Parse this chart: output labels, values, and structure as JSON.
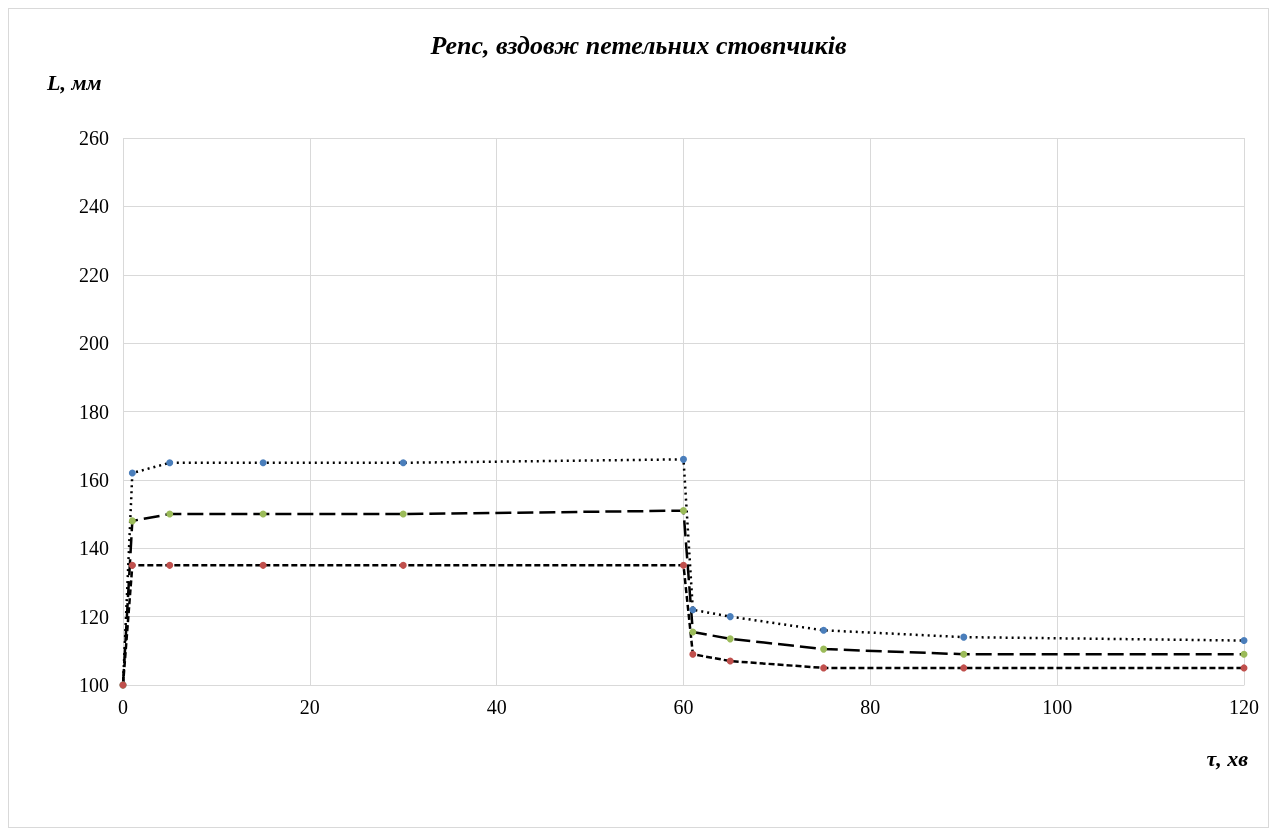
{
  "chart_data": {
    "type": "line",
    "title": "Репс, вздовж петельних стовпчиків",
    "xlabel": "τ, хв",
    "ylabel": "L, мм",
    "x": [
      0,
      1,
      5,
      15,
      30,
      60,
      61,
      65,
      75,
      90,
      120
    ],
    "series": [
      {
        "color": "#4a7ebb",
        "line_style": "dotted",
        "values": [
          100,
          162,
          165,
          165,
          165,
          166,
          122,
          120,
          116,
          114,
          113
        ]
      },
      {
        "color": "#9bbb59",
        "line_style": "dashed",
        "values": [
          100,
          148,
          150,
          150,
          150,
          151,
          115.5,
          113.5,
          110.5,
          109,
          109
        ]
      },
      {
        "color": "#c0504d",
        "line_style": "dashed",
        "values": [
          100,
          135,
          135,
          135,
          135,
          135,
          109,
          107,
          105,
          105,
          105
        ]
      }
    ],
    "xlim": [
      0,
      120
    ],
    "xticks": [
      0,
      20,
      40,
      60,
      80,
      100,
      120
    ],
    "ylim": [
      100,
      260
    ],
    "yticks": [
      100,
      120,
      140,
      160,
      180,
      200,
      220,
      240,
      260
    ],
    "grid": true,
    "marker": "circle"
  }
}
